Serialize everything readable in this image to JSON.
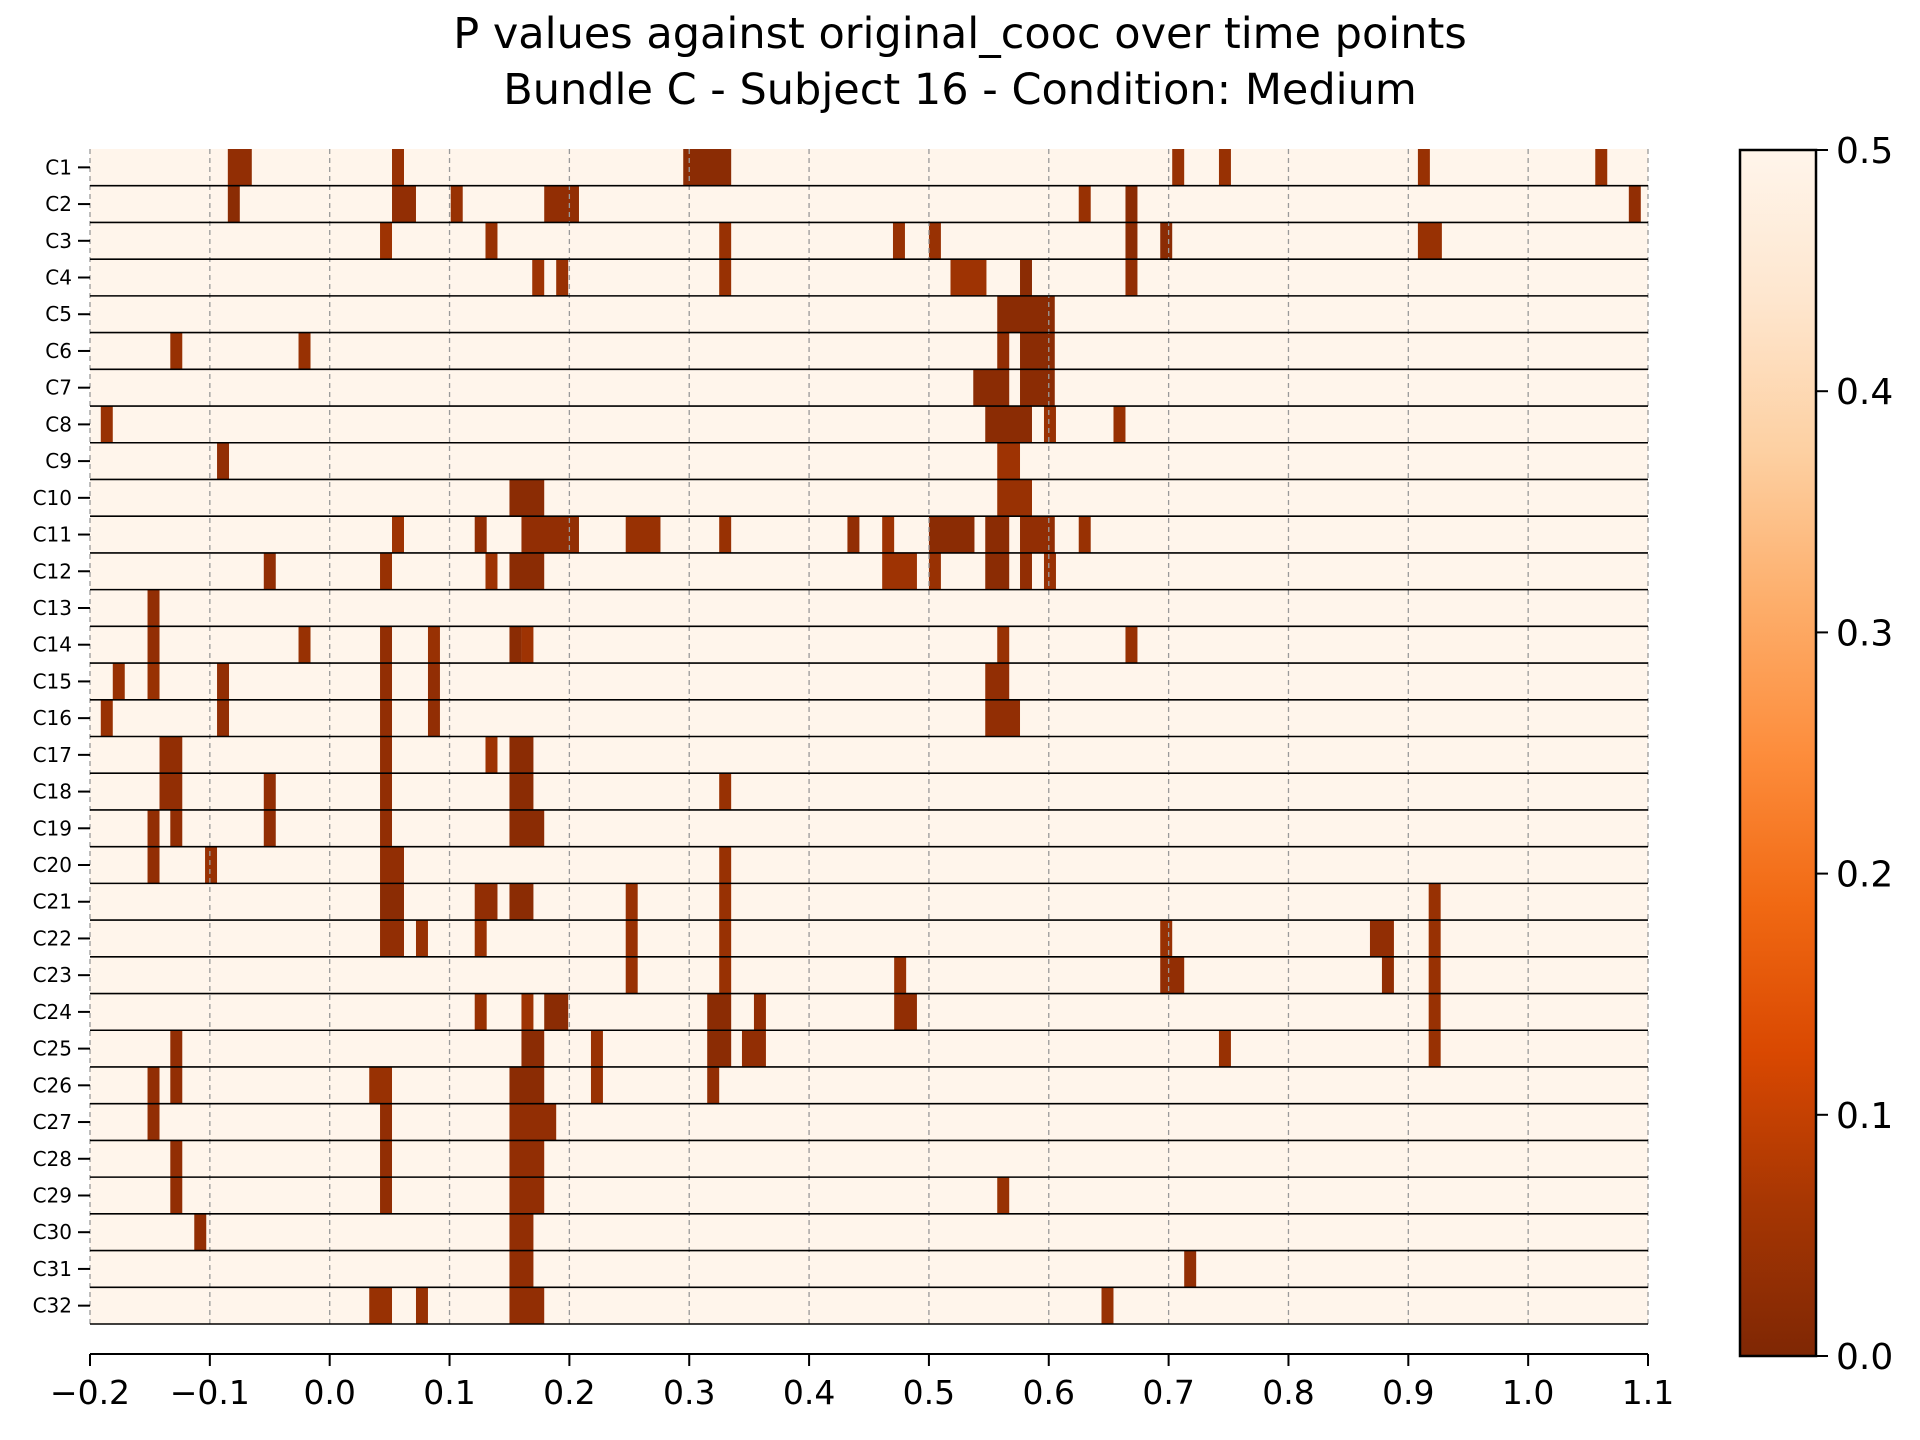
{
  "chart_data": {
    "type": "heatmap",
    "title": "P values against original_cooc over time points",
    "subtitle": "Bundle C - Subject 16 - Condition: Medium",
    "xlabel": "",
    "ylabel": "",
    "xlim": [
      -0.2,
      1.1
    ],
    "x_ticks": [
      "−0.2",
      "−0.1",
      "0.0",
      "0.1",
      "0.2",
      "0.3",
      "0.4",
      "0.5",
      "0.6",
      "0.7",
      "0.8",
      "0.9",
      "1.0",
      "1.1"
    ],
    "x_tick_values": [
      -0.2,
      -0.1,
      0.0,
      0.1,
      0.2,
      0.3,
      0.4,
      0.5,
      0.6,
      0.7,
      0.8,
      0.9,
      1.0,
      1.1
    ],
    "vertical_grid": "dashed at each x tick",
    "background_value": 0.5,
    "colorbar": {
      "colormap": "Oranges_r",
      "range": [
        0.0,
        0.5
      ],
      "ticks": [
        "0.0",
        "0.1",
        "0.2",
        "0.3",
        "0.4",
        "0.5"
      ],
      "tick_values": [
        0.0,
        0.1,
        0.2,
        0.3,
        0.4,
        0.5
      ],
      "colors": [
        "#7f2704",
        "#a63603",
        "#d94801",
        "#f16913",
        "#fd8d3c",
        "#fdae6b",
        "#fdd0a2",
        "#fee6ce",
        "#fff5eb"
      ]
    },
    "rows": [
      {
        "label": "C1",
        "segments": [
          {
            "start": -0.085,
            "end": -0.065,
            "p": 0.03
          },
          {
            "start": 0.052,
            "end": 0.062,
            "p": 0.04
          },
          {
            "start": 0.295,
            "end": 0.335,
            "p": 0.02
          },
          {
            "start": 0.703,
            "end": 0.713,
            "p": 0.04
          },
          {
            "start": 0.742,
            "end": 0.752,
            "p": 0.04
          },
          {
            "start": 0.908,
            "end": 0.918,
            "p": 0.04
          },
          {
            "start": 1.056,
            "end": 1.066,
            "p": 0.04
          }
        ]
      },
      {
        "label": "C2",
        "segments": [
          {
            "start": -0.085,
            "end": -0.075,
            "p": 0.02
          },
          {
            "start": 0.052,
            "end": 0.072,
            "p": 0.03
          },
          {
            "start": 0.101,
            "end": 0.111,
            "p": 0.04
          },
          {
            "start": 0.179,
            "end": 0.208,
            "p": 0.03
          },
          {
            "start": 0.625,
            "end": 0.635,
            "p": 0.04
          },
          {
            "start": 0.664,
            "end": 0.674,
            "p": 0.02
          },
          {
            "start": 1.084,
            "end": 1.094,
            "p": 0.03
          }
        ]
      },
      {
        "label": "C3",
        "segments": [
          {
            "start": 0.042,
            "end": 0.052,
            "p": 0.05
          },
          {
            "start": 0.13,
            "end": 0.14,
            "p": 0.04
          },
          {
            "start": 0.325,
            "end": 0.335,
            "p": 0.04
          },
          {
            "start": 0.47,
            "end": 0.48,
            "p": 0.04
          },
          {
            "start": 0.5,
            "end": 0.51,
            "p": 0.04
          },
          {
            "start": 0.664,
            "end": 0.674,
            "p": 0.02
          },
          {
            "start": 0.693,
            "end": 0.703,
            "p": 0.02
          },
          {
            "start": 0.908,
            "end": 0.928,
            "p": 0.04
          }
        ]
      },
      {
        "label": "C4",
        "segments": [
          {
            "start": 0.169,
            "end": 0.179,
            "p": 0.05
          },
          {
            "start": 0.189,
            "end": 0.199,
            "p": 0.04
          },
          {
            "start": 0.325,
            "end": 0.335,
            "p": 0.04
          },
          {
            "start": 0.518,
            "end": 0.548,
            "p": 0.05
          },
          {
            "start": 0.576,
            "end": 0.586,
            "p": 0.02
          },
          {
            "start": 0.664,
            "end": 0.674,
            "p": 0.03
          }
        ]
      },
      {
        "label": "C5",
        "segments": [
          {
            "start": 0.557,
            "end": 0.605,
            "p": 0.02
          }
        ]
      },
      {
        "label": "C6",
        "segments": [
          {
            "start": -0.133,
            "end": -0.123,
            "p": 0.04
          },
          {
            "start": -0.026,
            "end": -0.016,
            "p": 0.04
          },
          {
            "start": 0.557,
            "end": 0.567,
            "p": 0.03
          },
          {
            "start": 0.576,
            "end": 0.605,
            "p": 0.02
          }
        ]
      },
      {
        "label": "C7",
        "segments": [
          {
            "start": 0.537,
            "end": 0.567,
            "p": 0.02
          },
          {
            "start": 0.576,
            "end": 0.605,
            "p": 0.02
          }
        ]
      },
      {
        "label": "C8",
        "segments": [
          {
            "start": -0.191,
            "end": -0.181,
            "p": 0.04
          },
          {
            "start": 0.547,
            "end": 0.586,
            "p": 0.02
          },
          {
            "start": 0.596,
            "end": 0.606,
            "p": 0.04
          },
          {
            "start": 0.654,
            "end": 0.664,
            "p": 0.04
          }
        ]
      },
      {
        "label": "C9",
        "segments": [
          {
            "start": -0.094,
            "end": -0.084,
            "p": 0.03
          },
          {
            "start": 0.557,
            "end": 0.576,
            "p": 0.05
          }
        ]
      },
      {
        "label": "C10",
        "segments": [
          {
            "start": 0.15,
            "end": 0.179,
            "p": 0.02
          },
          {
            "start": 0.557,
            "end": 0.586,
            "p": 0.04
          }
        ]
      },
      {
        "label": "C11",
        "segments": [
          {
            "start": 0.052,
            "end": 0.062,
            "p": 0.05
          },
          {
            "start": 0.121,
            "end": 0.131,
            "p": 0.03
          },
          {
            "start": 0.16,
            "end": 0.208,
            "p": 0.03
          },
          {
            "start": 0.247,
            "end": 0.276,
            "p": 0.04
          },
          {
            "start": 0.325,
            "end": 0.335,
            "p": 0.04
          },
          {
            "start": 0.432,
            "end": 0.442,
            "p": 0.03
          },
          {
            "start": 0.461,
            "end": 0.471,
            "p": 0.05
          },
          {
            "start": 0.5,
            "end": 0.538,
            "p": 0.02
          },
          {
            "start": 0.547,
            "end": 0.567,
            "p": 0.02
          },
          {
            "start": 0.576,
            "end": 0.605,
            "p": 0.03
          },
          {
            "start": 0.625,
            "end": 0.635,
            "p": 0.04
          }
        ]
      },
      {
        "label": "C12",
        "segments": [
          {
            "start": -0.055,
            "end": -0.045,
            "p": 0.03
          },
          {
            "start": 0.042,
            "end": 0.052,
            "p": 0.04
          },
          {
            "start": 0.13,
            "end": 0.14,
            "p": 0.05
          },
          {
            "start": 0.15,
            "end": 0.179,
            "p": 0.02
          },
          {
            "start": 0.461,
            "end": 0.49,
            "p": 0.05
          },
          {
            "start": 0.5,
            "end": 0.51,
            "p": 0.04
          },
          {
            "start": 0.547,
            "end": 0.567,
            "p": 0.02
          },
          {
            "start": 0.576,
            "end": 0.586,
            "p": 0.03
          },
          {
            "start": 0.596,
            "end": 0.606,
            "p": 0.04
          }
        ]
      },
      {
        "label": "C13",
        "segments": [
          {
            "start": -0.152,
            "end": -0.142,
            "p": 0.03
          }
        ]
      },
      {
        "label": "C14",
        "segments": [
          {
            "start": -0.152,
            "end": -0.142,
            "p": 0.03
          },
          {
            "start": -0.026,
            "end": -0.016,
            "p": 0.04
          },
          {
            "start": 0.042,
            "end": 0.052,
            "p": 0.03
          },
          {
            "start": 0.082,
            "end": 0.092,
            "p": 0.04
          },
          {
            "start": 0.15,
            "end": 0.16,
            "p": 0.02
          },
          {
            "start": 0.16,
            "end": 0.17,
            "p": 0.05
          },
          {
            "start": 0.557,
            "end": 0.567,
            "p": 0.04
          },
          {
            "start": 0.664,
            "end": 0.674,
            "p": 0.04
          }
        ]
      },
      {
        "label": "C15",
        "segments": [
          {
            "start": -0.181,
            "end": -0.171,
            "p": 0.04
          },
          {
            "start": -0.152,
            "end": -0.142,
            "p": 0.04
          },
          {
            "start": -0.094,
            "end": -0.084,
            "p": 0.03
          },
          {
            "start": 0.042,
            "end": 0.052,
            "p": 0.03
          },
          {
            "start": 0.082,
            "end": 0.092,
            "p": 0.03
          },
          {
            "start": 0.547,
            "end": 0.567,
            "p": 0.03
          }
        ]
      },
      {
        "label": "C16",
        "segments": [
          {
            "start": -0.191,
            "end": -0.181,
            "p": 0.04
          },
          {
            "start": -0.094,
            "end": -0.084,
            "p": 0.03
          },
          {
            "start": 0.042,
            "end": 0.052,
            "p": 0.03
          },
          {
            "start": 0.082,
            "end": 0.092,
            "p": 0.03
          },
          {
            "start": 0.547,
            "end": 0.576,
            "p": 0.03
          }
        ]
      },
      {
        "label": "C17",
        "segments": [
          {
            "start": -0.142,
            "end": -0.123,
            "p": 0.03
          },
          {
            "start": 0.042,
            "end": 0.052,
            "p": 0.03
          },
          {
            "start": 0.13,
            "end": 0.14,
            "p": 0.05
          },
          {
            "start": 0.15,
            "end": 0.17,
            "p": 0.02
          }
        ]
      },
      {
        "label": "C18",
        "segments": [
          {
            "start": -0.142,
            "end": -0.123,
            "p": 0.03
          },
          {
            "start": -0.055,
            "end": -0.045,
            "p": 0.03
          },
          {
            "start": 0.042,
            "end": 0.052,
            "p": 0.03
          },
          {
            "start": 0.15,
            "end": 0.17,
            "p": 0.02
          },
          {
            "start": 0.325,
            "end": 0.335,
            "p": 0.04
          }
        ]
      },
      {
        "label": "C19",
        "segments": [
          {
            "start": -0.152,
            "end": -0.142,
            "p": 0.03
          },
          {
            "start": -0.133,
            "end": -0.123,
            "p": 0.03
          },
          {
            "start": -0.055,
            "end": -0.045,
            "p": 0.03
          },
          {
            "start": 0.042,
            "end": 0.052,
            "p": 0.03
          },
          {
            "start": 0.15,
            "end": 0.179,
            "p": 0.02
          }
        ]
      },
      {
        "label": "C20",
        "segments": [
          {
            "start": -0.152,
            "end": -0.142,
            "p": 0.03
          },
          {
            "start": -0.104,
            "end": -0.094,
            "p": 0.04
          },
          {
            "start": 0.042,
            "end": 0.062,
            "p": 0.03
          },
          {
            "start": 0.325,
            "end": 0.335,
            "p": 0.04
          }
        ]
      },
      {
        "label": "C21",
        "segments": [
          {
            "start": 0.042,
            "end": 0.062,
            "p": 0.02
          },
          {
            "start": 0.121,
            "end": 0.14,
            "p": 0.03
          },
          {
            "start": 0.15,
            "end": 0.17,
            "p": 0.02
          },
          {
            "start": 0.247,
            "end": 0.257,
            "p": 0.04
          },
          {
            "start": 0.325,
            "end": 0.335,
            "p": 0.04
          },
          {
            "start": 0.917,
            "end": 0.927,
            "p": 0.04
          }
        ]
      },
      {
        "label": "C22",
        "segments": [
          {
            "start": 0.042,
            "end": 0.062,
            "p": 0.03
          },
          {
            "start": 0.072,
            "end": 0.082,
            "p": 0.04
          },
          {
            "start": 0.121,
            "end": 0.131,
            "p": 0.04
          },
          {
            "start": 0.247,
            "end": 0.257,
            "p": 0.04
          },
          {
            "start": 0.325,
            "end": 0.335,
            "p": 0.04
          },
          {
            "start": 0.693,
            "end": 0.703,
            "p": 0.04
          },
          {
            "start": 0.868,
            "end": 0.888,
            "p": 0.03
          },
          {
            "start": 0.917,
            "end": 0.927,
            "p": 0.04
          }
        ]
      },
      {
        "label": "C23",
        "segments": [
          {
            "start": 0.247,
            "end": 0.257,
            "p": 0.04
          },
          {
            "start": 0.325,
            "end": 0.335,
            "p": 0.04
          },
          {
            "start": 0.471,
            "end": 0.481,
            "p": 0.04
          },
          {
            "start": 0.693,
            "end": 0.713,
            "p": 0.03
          },
          {
            "start": 0.878,
            "end": 0.888,
            "p": 0.03
          },
          {
            "start": 0.917,
            "end": 0.927,
            "p": 0.04
          }
        ]
      },
      {
        "label": "C24",
        "segments": [
          {
            "start": 0.121,
            "end": 0.131,
            "p": 0.04
          },
          {
            "start": 0.16,
            "end": 0.17,
            "p": 0.05
          },
          {
            "start": 0.179,
            "end": 0.199,
            "p": 0.02
          },
          {
            "start": 0.315,
            "end": 0.335,
            "p": 0.02
          },
          {
            "start": 0.354,
            "end": 0.364,
            "p": 0.03
          },
          {
            "start": 0.471,
            "end": 0.49,
            "p": 0.03
          },
          {
            "start": 0.917,
            "end": 0.927,
            "p": 0.04
          }
        ]
      },
      {
        "label": "C25",
        "segments": [
          {
            "start": -0.133,
            "end": -0.123,
            "p": 0.03
          },
          {
            "start": 0.16,
            "end": 0.179,
            "p": 0.02
          },
          {
            "start": 0.218,
            "end": 0.228,
            "p": 0.04
          },
          {
            "start": 0.315,
            "end": 0.335,
            "p": 0.02
          },
          {
            "start": 0.344,
            "end": 0.364,
            "p": 0.03
          },
          {
            "start": 0.742,
            "end": 0.752,
            "p": 0.04
          },
          {
            "start": 0.917,
            "end": 0.927,
            "p": 0.04
          }
        ]
      },
      {
        "label": "C26",
        "segments": [
          {
            "start": -0.152,
            "end": -0.142,
            "p": 0.03
          },
          {
            "start": -0.133,
            "end": -0.123,
            "p": 0.03
          },
          {
            "start": 0.033,
            "end": 0.052,
            "p": 0.04
          },
          {
            "start": 0.15,
            "end": 0.179,
            "p": 0.02
          },
          {
            "start": 0.218,
            "end": 0.228,
            "p": 0.04
          },
          {
            "start": 0.315,
            "end": 0.325,
            "p": 0.03
          }
        ]
      },
      {
        "label": "C27",
        "segments": [
          {
            "start": -0.152,
            "end": -0.142,
            "p": 0.03
          },
          {
            "start": 0.042,
            "end": 0.052,
            "p": 0.03
          },
          {
            "start": 0.15,
            "end": 0.189,
            "p": 0.03
          }
        ]
      },
      {
        "label": "C28",
        "segments": [
          {
            "start": -0.133,
            "end": -0.123,
            "p": 0.03
          },
          {
            "start": 0.042,
            "end": 0.052,
            "p": 0.03
          },
          {
            "start": 0.15,
            "end": 0.179,
            "p": 0.03
          }
        ]
      },
      {
        "label": "C29",
        "segments": [
          {
            "start": -0.133,
            "end": -0.123,
            "p": 0.03
          },
          {
            "start": 0.042,
            "end": 0.052,
            "p": 0.03
          },
          {
            "start": 0.15,
            "end": 0.179,
            "p": 0.03
          },
          {
            "start": 0.557,
            "end": 0.567,
            "p": 0.04
          }
        ]
      },
      {
        "label": "C30",
        "segments": [
          {
            "start": -0.113,
            "end": -0.103,
            "p": 0.03
          },
          {
            "start": 0.15,
            "end": 0.17,
            "p": 0.03
          }
        ]
      },
      {
        "label": "C31",
        "segments": [
          {
            "start": 0.15,
            "end": 0.17,
            "p": 0.03
          },
          {
            "start": 0.713,
            "end": 0.723,
            "p": 0.03
          }
        ]
      },
      {
        "label": "C32",
        "segments": [
          {
            "start": 0.033,
            "end": 0.052,
            "p": 0.04
          },
          {
            "start": 0.072,
            "end": 0.082,
            "p": 0.04
          },
          {
            "start": 0.15,
            "end": 0.179,
            "p": 0.03
          },
          {
            "start": 0.644,
            "end": 0.654,
            "p": 0.04
          }
        ]
      }
    ]
  }
}
